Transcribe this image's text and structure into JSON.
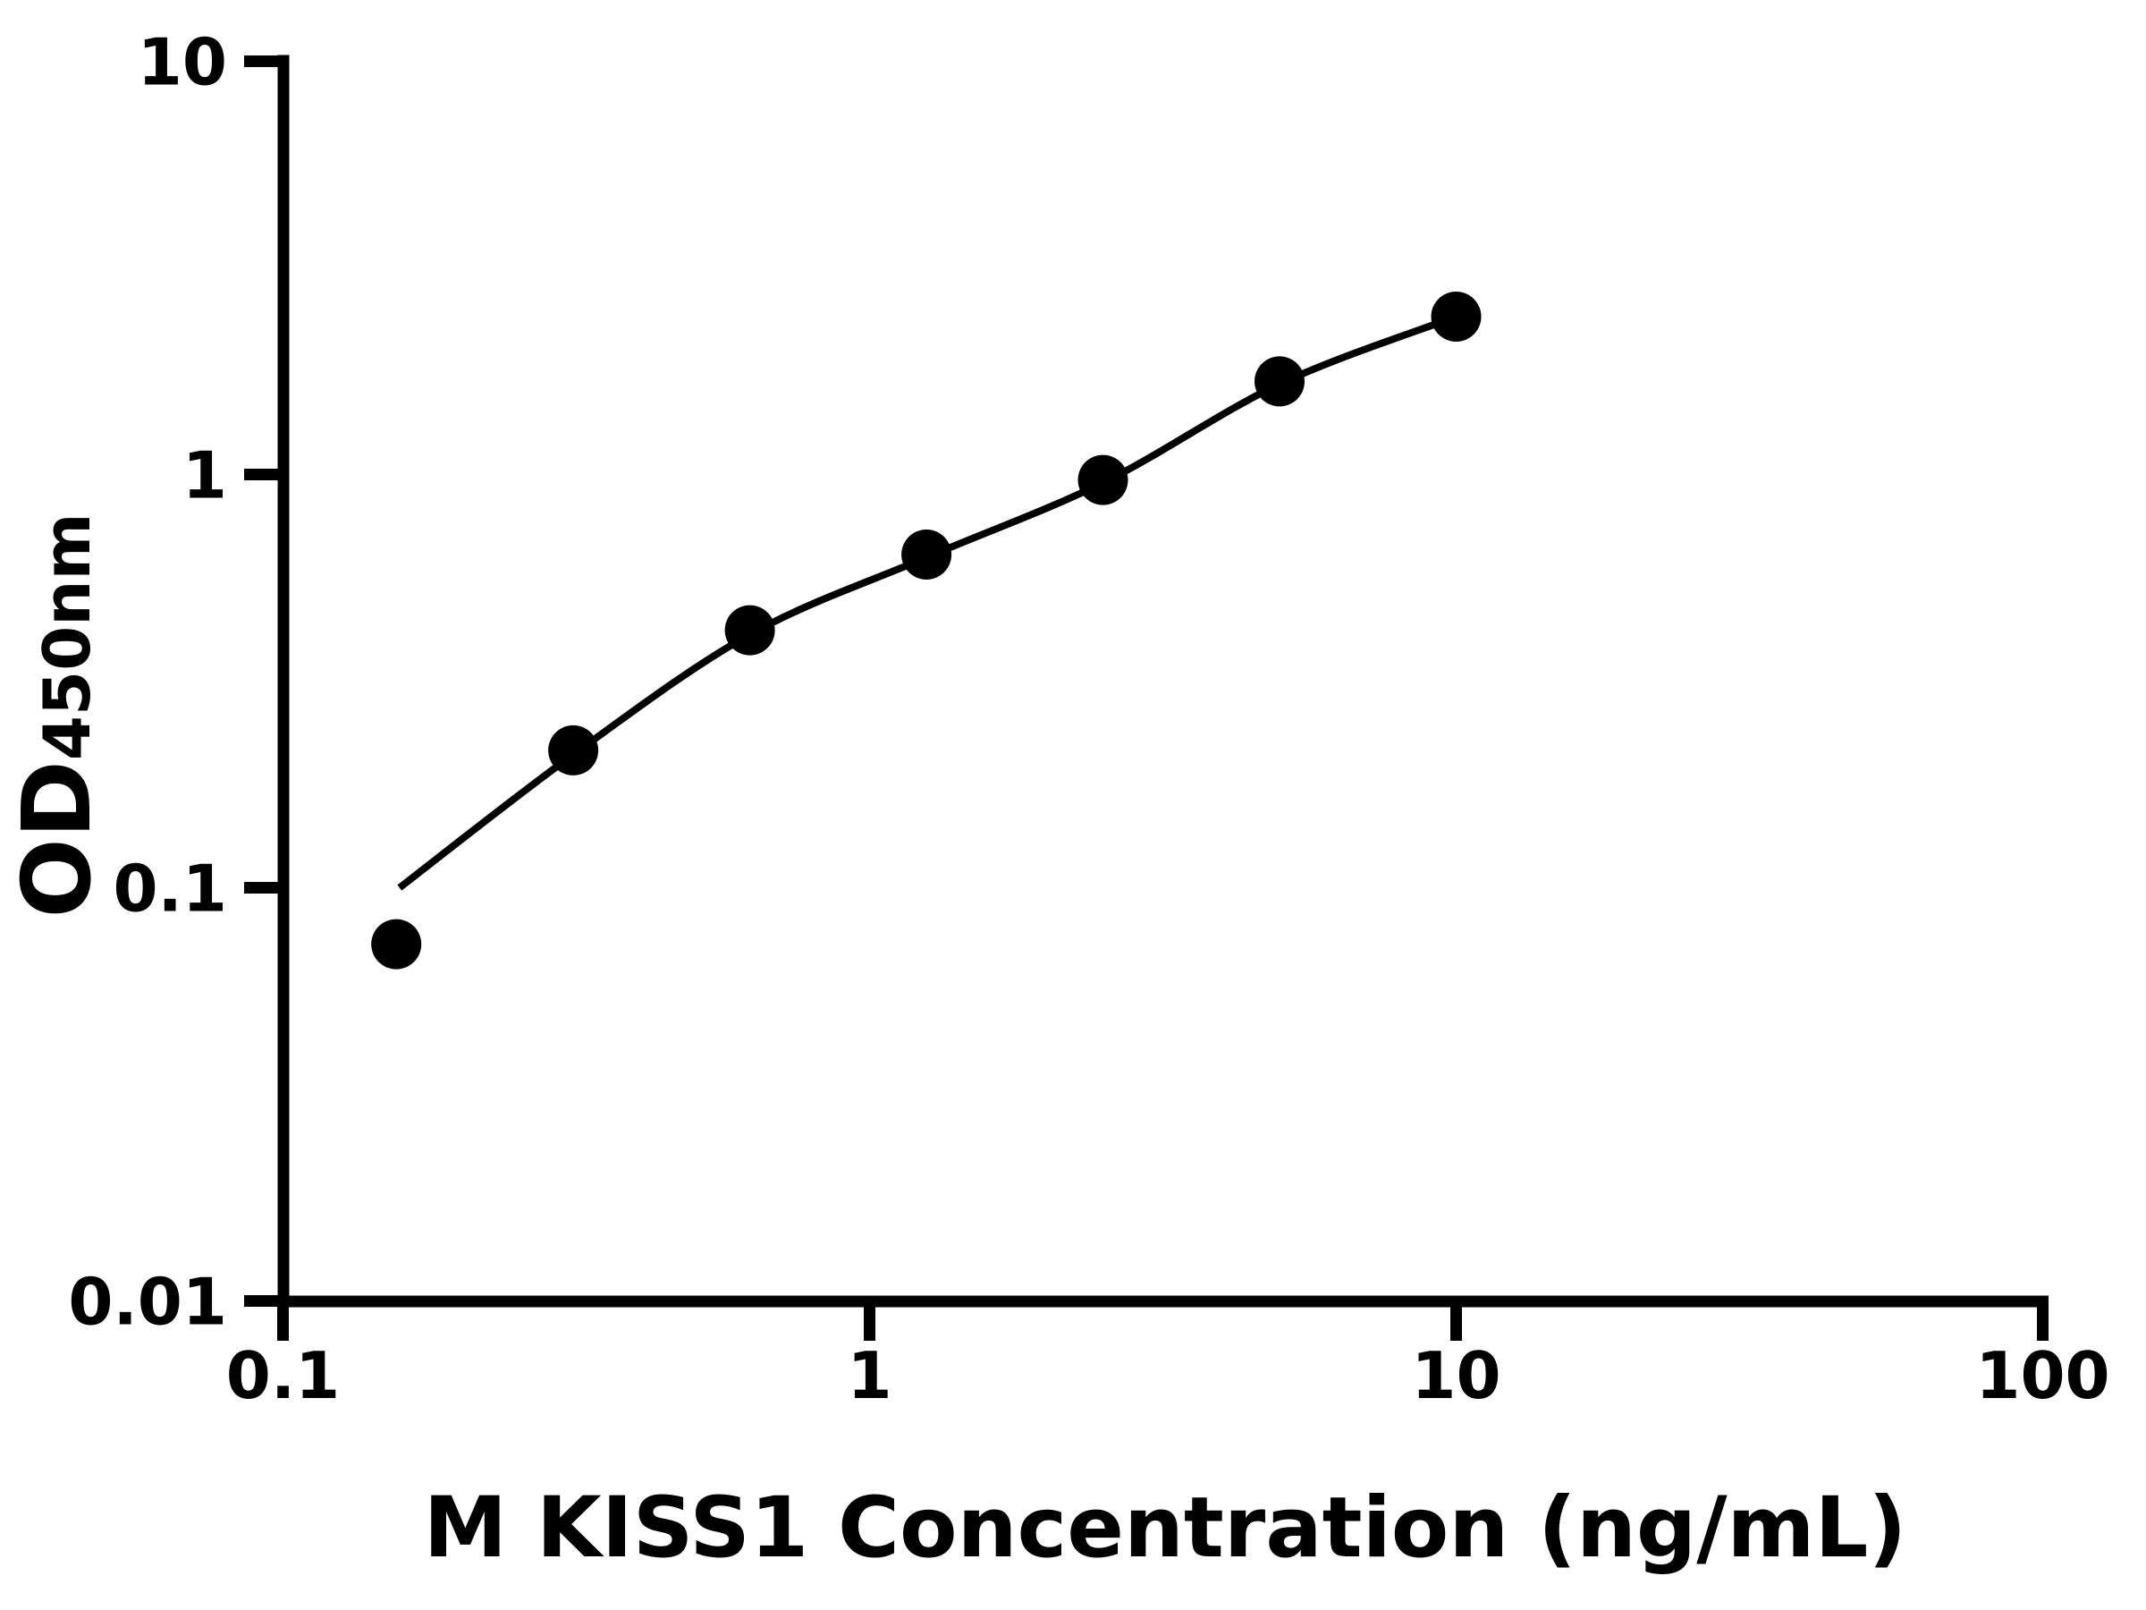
{
  "figure": {
    "background": "#ffffff",
    "foreground": "#000000"
  },
  "chart_data": {
    "type": "scatter",
    "title": "",
    "xlabel": "M KISS1 Concentration (ng/mL)",
    "ylabel_main": "OD",
    "ylabel_sub": "450nm",
    "x_scale": "log",
    "y_scale": "log",
    "xlim": [
      0.1,
      100
    ],
    "ylim": [
      0.01,
      10
    ],
    "x_ticks": [
      "0.1",
      "1",
      "10",
      "100"
    ],
    "y_ticks": [
      "10",
      "1",
      "0.1",
      "0.01"
    ],
    "grid": false,
    "legend": false,
    "marker_color": "#000000",
    "line_color": "#000000",
    "series": [
      {
        "marker": "circle",
        "points": [
          {
            "x": 0.156,
            "y": 0.073
          },
          {
            "x": 0.3125,
            "y": 0.215
          },
          {
            "x": 0.625,
            "y": 0.42
          },
          {
            "x": 1.25,
            "y": 0.64
          },
          {
            "x": 2.5,
            "y": 0.97
          },
          {
            "x": 5,
            "y": 1.68
          },
          {
            "x": 10,
            "y": 2.41
          }
        ]
      }
    ],
    "fit_curve": {
      "samples": [
        {
          "x": 0.158,
          "y": 0.1
        },
        {
          "x": 0.3125,
          "y": 0.21
        },
        {
          "x": 0.625,
          "y": 0.41
        },
        {
          "x": 1.25,
          "y": 0.63
        },
        {
          "x": 2.5,
          "y": 0.955
        },
        {
          "x": 5,
          "y": 1.655
        },
        {
          "x": 10,
          "y": 2.41
        }
      ]
    }
  }
}
